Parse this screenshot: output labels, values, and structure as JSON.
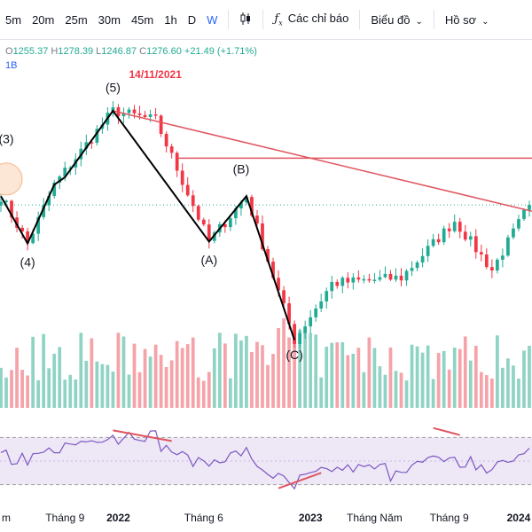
{
  "toolbar": {
    "intervals": [
      "5m",
      "20m",
      "25m",
      "30m",
      "45m",
      "1h",
      "D",
      "W"
    ],
    "active_interval": "W",
    "candle_icon": "candlestick-icon",
    "indicators_icon": "fx-icon",
    "indicators_label": "Các chỉ báo",
    "chart_type_label": "Biểu đồ",
    "profile_label": "Hồ sơ"
  },
  "ohlc": {
    "o_key": "O",
    "o": "1255.37",
    "h_key": "H",
    "h": "1278.39",
    "l_key": "L",
    "l": "1246.87",
    "c_key": "C",
    "c": "1276.60",
    "change": "+21.49 (+1.71%)"
  },
  "volume_label": "1B",
  "colors": {
    "up": "#22ab94",
    "down": "#f23645",
    "volume_up": "#8fd3c5",
    "volume_down": "#f5a3a9",
    "trendline": "#e0555f",
    "wave_line": "#000000",
    "rsi_line": "#7e57c2",
    "rsi_band": "#ede7f6",
    "annotation": "#f23645",
    "highlight_circle": "#f5b78a"
  },
  "chart_data": {
    "type": "candlestick",
    "title": "",
    "annotations": {
      "date_label": "14/11/2021",
      "waves": [
        "(3)",
        "(4)",
        "(5)",
        "(A)",
        "(B)",
        "(C)"
      ]
    },
    "x_tick_labels": [
      "m",
      "Tháng 9",
      "2022",
      "Tháng 6",
      "2023",
      "Tháng Năm",
      "Tháng 9",
      "2024"
    ],
    "x_tick_index": [
      0,
      12,
      22,
      38,
      58,
      70,
      84,
      97
    ],
    "n_weeks": 100,
    "price_range": [
      870,
      1560
    ],
    "key_points": [
      {
        "week": 0,
        "price": 1300
      },
      {
        "week": 5,
        "price": 1175
      },
      {
        "week": 10,
        "price": 1330
      },
      {
        "week": 21,
        "price": 1525
      },
      {
        "week": 29,
        "price": 1500
      },
      {
        "week": 39,
        "price": 1180
      },
      {
        "week": 46,
        "price": 1300
      },
      {
        "week": 55,
        "price": 920
      },
      {
        "week": 62,
        "price": 1070
      },
      {
        "week": 75,
        "price": 1085
      },
      {
        "week": 85,
        "price": 1235
      },
      {
        "week": 92,
        "price": 1105
      },
      {
        "week": 99,
        "price": 1276.6
      }
    ],
    "rsi_range": [
      20,
      80
    ],
    "rsi_band": [
      30,
      70
    ]
  }
}
